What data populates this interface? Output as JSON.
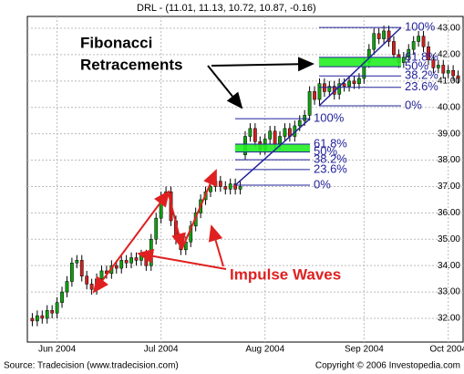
{
  "chart_data": {
    "type": "candlestick",
    "title": "DRL -  (11.01, 11.13, 10.72, 10.87, -0.16)",
    "annotations": [
      "Fibonacci",
      "Retracements",
      "Impulse Waves"
    ],
    "source": "Source: Tradecision (www.tradecision.com)",
    "copyright": "Copyright © 2006 Investopedia.com",
    "up_color": "#10a010",
    "down_color": "#d02020",
    "xlim": [
      -1,
      87
    ],
    "xticks": [
      {
        "value": 5,
        "label": "Jun 2004"
      },
      {
        "value": 26,
        "label": "Jul 2004"
      },
      {
        "value": 47,
        "label": "Aug 2004"
      },
      {
        "value": 67,
        "label": "Sep 2004"
      },
      {
        "value": 84,
        "label": "Oct 2004"
      }
    ],
    "ylim": [
      31.1,
      43.45
    ],
    "yticks": [
      {
        "value": 32,
        "label": "32.00"
      },
      {
        "value": 33,
        "label": "33.00"
      },
      {
        "value": 34,
        "label": "34.00"
      },
      {
        "value": 35,
        "label": "35.00"
      },
      {
        "value": 36,
        "label": "36.00"
      },
      {
        "value": 37,
        "label": "37.00"
      },
      {
        "value": 38,
        "label": "38.00"
      },
      {
        "value": 39,
        "label": "39.00"
      },
      {
        "value": 40,
        "label": "40.00"
      },
      {
        "value": 41,
        "label": "41.00"
      },
      {
        "value": 42,
        "label": "42.00"
      },
      {
        "value": 43,
        "label": "43.00"
      }
    ],
    "grid": true,
    "candles": [
      [
        32.0,
        32.2,
        31.7,
        31.9
      ],
      [
        31.9,
        32.3,
        31.7,
        32.1
      ],
      [
        32.1,
        32.3,
        31.8,
        32.0
      ],
      [
        32.0,
        32.5,
        31.8,
        32.3
      ],
      [
        32.3,
        32.5,
        32.0,
        32.2
      ],
      [
        32.2,
        32.8,
        32.0,
        32.6
      ],
      [
        32.6,
        33.2,
        32.4,
        33.0
      ],
      [
        33.0,
        33.6,
        32.8,
        33.4
      ],
      [
        33.4,
        34.3,
        33.2,
        34.1
      ],
      [
        34.1,
        34.4,
        33.9,
        34.2
      ],
      [
        34.2,
        34.4,
        33.4,
        33.6
      ],
      [
        33.6,
        33.8,
        33.1,
        33.3
      ],
      [
        33.3,
        33.5,
        32.9,
        33.1
      ],
      [
        33.1,
        33.7,
        32.9,
        33.5
      ],
      [
        33.5,
        34.0,
        33.3,
        33.8
      ],
      [
        33.8,
        34.0,
        33.5,
        33.7
      ],
      [
        33.7,
        34.2,
        33.5,
        34.0
      ],
      [
        34.0,
        34.2,
        33.7,
        33.9
      ],
      [
        33.9,
        34.4,
        33.7,
        34.2
      ],
      [
        34.2,
        34.4,
        33.9,
        34.1
      ],
      [
        34.1,
        34.5,
        33.9,
        34.3
      ],
      [
        34.3,
        34.5,
        34.0,
        34.2
      ],
      [
        34.2,
        34.6,
        34.0,
        34.4
      ],
      [
        34.4,
        34.6,
        33.8,
        34.0
      ],
      [
        34.0,
        35.2,
        33.8,
        35.0
      ],
      [
        35.0,
        36.0,
        34.8,
        35.8
      ],
      [
        35.8,
        36.8,
        35.6,
        36.6
      ],
      [
        36.6,
        37.0,
        36.4,
        36.8
      ],
      [
        36.8,
        37.0,
        35.5,
        35.7
      ],
      [
        35.7,
        35.9,
        34.8,
        35.0
      ],
      [
        35.0,
        35.2,
        34.4,
        34.6
      ],
      [
        34.6,
        35.1,
        34.4,
        34.9
      ],
      [
        34.9,
        35.7,
        34.7,
        35.5
      ],
      [
        35.5,
        36.2,
        35.3,
        36.0
      ],
      [
        36.0,
        36.7,
        35.8,
        36.5
      ],
      [
        36.5,
        37.0,
        36.3,
        36.8
      ],
      [
        36.8,
        37.2,
        36.6,
        37.0
      ],
      [
        37.0,
        37.4,
        36.8,
        37.2
      ],
      [
        37.2,
        37.4,
        36.8,
        37.0
      ],
      [
        37.0,
        37.2,
        36.7,
        36.9
      ],
      [
        36.9,
        37.3,
        36.7,
        37.1
      ],
      [
        37.1,
        37.3,
        36.7,
        36.9
      ],
      [
        36.9,
        37.2,
        36.7,
        37.0
      ],
      [
        38.2,
        39.1,
        38.0,
        38.9
      ],
      [
        38.9,
        39.4,
        38.7,
        39.2
      ],
      [
        39.2,
        39.4,
        38.5,
        38.7
      ],
      [
        38.7,
        38.9,
        38.2,
        38.4
      ],
      [
        38.4,
        39.0,
        38.2,
        38.8
      ],
      [
        38.8,
        39.3,
        38.6,
        39.1
      ],
      [
        39.1,
        39.3,
        38.4,
        38.6
      ],
      [
        38.6,
        39.1,
        38.4,
        38.9
      ],
      [
        38.9,
        39.4,
        38.7,
        39.2
      ],
      [
        39.2,
        39.4,
        38.7,
        38.9
      ],
      [
        38.9,
        39.5,
        38.7,
        39.3
      ],
      [
        39.3,
        39.7,
        39.1,
        39.5
      ],
      [
        39.5,
        39.9,
        39.3,
        39.7
      ],
      [
        39.7,
        40.8,
        39.5,
        40.6
      ],
      [
        40.6,
        40.8,
        40.1,
        40.3
      ],
      [
        40.3,
        41.1,
        40.1,
        40.9
      ],
      [
        40.9,
        41.1,
        40.4,
        40.6
      ],
      [
        40.6,
        41.0,
        40.4,
        40.8
      ],
      [
        40.8,
        41.0,
        40.3,
        40.5
      ],
      [
        40.5,
        41.1,
        40.3,
        40.9
      ],
      [
        40.9,
        41.1,
        40.6,
        40.8
      ],
      [
        40.8,
        41.2,
        40.6,
        41.0
      ],
      [
        41.0,
        41.2,
        40.7,
        40.9
      ],
      [
        40.9,
        41.3,
        40.7,
        41.1
      ],
      [
        41.1,
        41.9,
        40.9,
        41.7
      ],
      [
        41.7,
        42.4,
        41.5,
        42.2
      ],
      [
        42.2,
        43.0,
        42.0,
        42.8
      ],
      [
        42.8,
        43.0,
        42.4,
        42.6
      ],
      [
        42.6,
        43.1,
        42.4,
        42.9
      ],
      [
        42.9,
        43.1,
        42.3,
        42.5
      ],
      [
        42.5,
        42.7,
        41.8,
        42.0
      ],
      [
        42.0,
        42.2,
        41.5,
        41.7
      ],
      [
        41.7,
        42.1,
        41.5,
        41.9
      ],
      [
        41.9,
        42.4,
        41.7,
        42.2
      ],
      [
        42.2,
        42.7,
        42.0,
        42.5
      ],
      [
        42.5,
        42.9,
        42.3,
        42.7
      ],
      [
        42.7,
        42.9,
        42.1,
        42.3
      ],
      [
        42.3,
        42.5,
        41.6,
        41.8
      ],
      [
        41.8,
        42.0,
        41.3,
        41.5
      ],
      [
        41.5,
        41.8,
        41.3,
        41.6
      ],
      [
        41.6,
        41.8,
        41.1,
        41.3
      ],
      [
        41.3,
        41.6,
        41.1,
        41.4
      ],
      [
        41.4,
        41.6,
        41.0,
        41.2
      ],
      [
        41.2,
        41.4,
        40.9,
        41.1
      ]
    ],
    "fibonacci": [
      {
        "low": 37.05,
        "high": 39.57,
        "highlight_color": "#22ee22",
        "levels": [
          {
            "value": 100,
            "label": "100%"
          },
          {
            "value": 61.8,
            "label": "61.8%"
          },
          {
            "value": 50,
            "label": "50%"
          },
          {
            "value": 38.2,
            "label": "38.2%"
          },
          {
            "value": 23.6,
            "label": "23.6%"
          },
          {
            "value": 0,
            "label": "0%"
          }
        ]
      },
      {
        "low": 40.06,
        "high": 43.03,
        "highlight_color": "#22ee22",
        "levels": [
          {
            "value": 100,
            "label": "100%"
          },
          {
            "value": 61.8,
            "label": "61.8%"
          },
          {
            "value": 50,
            "label": "50%"
          },
          {
            "value": 38.2,
            "label": "38.2%"
          },
          {
            "value": 23.6,
            "label": "23.6%"
          },
          {
            "value": 0,
            "label": "0%"
          }
        ]
      }
    ]
  }
}
